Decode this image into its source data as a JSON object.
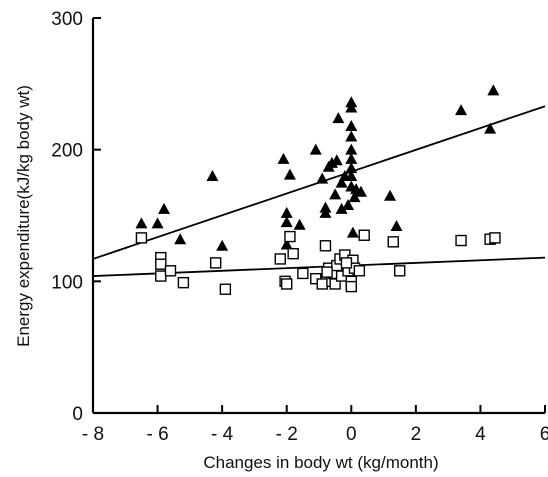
{
  "chart_data": {
    "type": "scatter",
    "xlabel": "Changes in body wt (kg/month)",
    "ylabel": "Energy expenditure(kJ/kg body wt)",
    "xlim": [
      -8,
      6
    ],
    "ylim": [
      0,
      300
    ],
    "x_ticks": [
      -8,
      -6,
      -4,
      -2,
      0,
      2,
      4,
      6
    ],
    "x_tick_labels": [
      "- 8",
      "- 6",
      "- 4",
      "- 2",
      "0",
      "2",
      "4",
      "6"
    ],
    "y_ticks": [
      0,
      100,
      200,
      300
    ],
    "y_tick_labels": [
      "0",
      "100",
      "200",
      "300"
    ],
    "grid": false,
    "series": [
      {
        "marker": "filled-triangle",
        "color": "#000000",
        "points": [
          [
            -6.5,
            144
          ],
          [
            -6.0,
            144
          ],
          [
            -5.8,
            155
          ],
          [
            -5.3,
            132
          ],
          [
            -4.3,
            180
          ],
          [
            -4.0,
            127
          ],
          [
            -2.1,
            193
          ],
          [
            -2.0,
            152
          ],
          [
            -1.9,
            181
          ],
          [
            -2.0,
            145
          ],
          [
            -2.0,
            128
          ],
          [
            -1.6,
            143
          ],
          [
            -1.1,
            200
          ],
          [
            -0.9,
            178
          ],
          [
            -0.8,
            156
          ],
          [
            -0.8,
            152
          ],
          [
            -0.7,
            187
          ],
          [
            -0.6,
            190
          ],
          [
            -0.5,
            166
          ],
          [
            -0.45,
            192
          ],
          [
            -0.4,
            224
          ],
          [
            -0.3,
            155
          ],
          [
            -0.3,
            175
          ],
          [
            -0.2,
            180
          ],
          [
            0.0,
            236
          ],
          [
            0.0,
            232
          ],
          [
            0.0,
            218
          ],
          [
            0.0,
            210
          ],
          [
            0.0,
            200
          ],
          [
            0.0,
            193
          ],
          [
            0.0,
            186
          ],
          [
            0.0,
            180
          ],
          [
            0.0,
            172
          ],
          [
            0.05,
            137
          ],
          [
            0.1,
            164
          ],
          [
            0.15,
            170
          ],
          [
            0.3,
            168
          ],
          [
            -0.1,
            158
          ],
          [
            1.2,
            165
          ],
          [
            1.4,
            142
          ],
          [
            3.4,
            230
          ],
          [
            4.3,
            216
          ],
          [
            4.4,
            245
          ]
        ]
      },
      {
        "marker": "open-square",
        "color": "#000000",
        "points": [
          [
            -6.5,
            133
          ],
          [
            -5.9,
            118
          ],
          [
            -5.9,
            104
          ],
          [
            -5.9,
            113
          ],
          [
            -5.6,
            108
          ],
          [
            -5.2,
            99
          ],
          [
            -4.2,
            114
          ],
          [
            -3.9,
            94
          ],
          [
            -2.2,
            117
          ],
          [
            -2.05,
            100
          ],
          [
            -2.0,
            98
          ],
          [
            -1.9,
            134
          ],
          [
            -1.8,
            121
          ],
          [
            -1.5,
            106
          ],
          [
            -1.1,
            102
          ],
          [
            -0.9,
            98
          ],
          [
            -0.8,
            127
          ],
          [
            -0.7,
            110
          ],
          [
            -0.6,
            100
          ],
          [
            -0.55,
            106
          ],
          [
            -0.5,
            98
          ],
          [
            -0.45,
            112
          ],
          [
            -0.35,
            117
          ],
          [
            -0.3,
            104
          ],
          [
            -0.2,
            120
          ],
          [
            -0.1,
            108
          ],
          [
            0.0,
            100
          ],
          [
            0.0,
            96
          ],
          [
            0.05,
            116
          ],
          [
            0.1,
            110
          ],
          [
            0.25,
            108
          ],
          [
            0.4,
            135
          ],
          [
            -0.75,
            107
          ],
          [
            -0.15,
            114
          ],
          [
            1.3,
            130
          ],
          [
            1.5,
            108
          ],
          [
            3.4,
            131
          ],
          [
            4.3,
            132
          ],
          [
            4.45,
            133
          ]
        ]
      }
    ],
    "trendlines": [
      {
        "marker_series": "filled-triangle",
        "x": [
          -8,
          6
        ],
        "y": [
          117,
          233
        ]
      },
      {
        "marker_series": "open-square",
        "x": [
          -8,
          6
        ],
        "y": [
          104,
          118
        ]
      }
    ]
  }
}
